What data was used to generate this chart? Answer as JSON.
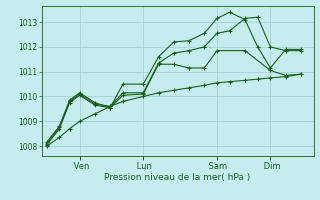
{
  "xlabel": "Pression niveau de la mer( hPa )",
  "bg_color": "#c5ecee",
  "grid_color": "#9ecdd4",
  "line_color": "#1a5e1a",
  "ylim": [
    1007.6,
    1013.65
  ],
  "yticks": [
    1008,
    1009,
    1010,
    1011,
    1012,
    1013
  ],
  "day_labels": [
    " Ven",
    " Lun",
    " Sam",
    " Dim"
  ],
  "day_positions": [
    0.13,
    0.38,
    0.67,
    0.88
  ],
  "lines": [
    {
      "x": [
        0.0,
        0.05,
        0.09,
        0.13,
        0.19,
        0.25,
        0.3,
        0.38,
        0.44,
        0.5,
        0.56,
        0.62,
        0.67,
        0.72,
        0.78,
        0.83,
        0.88,
        0.94,
        1.0
      ],
      "y": [
        1008.0,
        1008.35,
        1008.7,
        1009.0,
        1009.3,
        1009.6,
        1009.8,
        1010.0,
        1010.15,
        1010.25,
        1010.35,
        1010.45,
        1010.55,
        1010.6,
        1010.65,
        1010.7,
        1010.75,
        1010.8,
        1010.9
      ]
    },
    {
      "x": [
        0.0,
        0.05,
        0.09,
        0.13,
        0.19,
        0.25,
        0.3,
        0.38,
        0.44,
        0.5,
        0.56,
        0.62,
        0.67,
        0.78,
        0.88,
        0.94,
        1.0
      ],
      "y": [
        1008.05,
        1008.7,
        1009.75,
        1010.05,
        1009.65,
        1009.55,
        1010.05,
        1010.1,
        1011.3,
        1011.3,
        1011.15,
        1011.15,
        1011.85,
        1011.85,
        1011.05,
        1010.85,
        1010.9
      ]
    },
    {
      "x": [
        0.0,
        0.05,
        0.09,
        0.13,
        0.19,
        0.25,
        0.3,
        0.38,
        0.44,
        0.5,
        0.56,
        0.62,
        0.67,
        0.72,
        0.78,
        0.83,
        0.88,
        0.94,
        1.0
      ],
      "y": [
        1008.1,
        1008.75,
        1009.8,
        1010.1,
        1009.7,
        1009.6,
        1010.15,
        1010.15,
        1011.35,
        1011.75,
        1011.85,
        1012.0,
        1012.55,
        1012.65,
        1013.15,
        1013.2,
        1012.0,
        1011.85,
        1011.85
      ]
    },
    {
      "x": [
        0.0,
        0.05,
        0.09,
        0.13,
        0.19,
        0.25,
        0.3,
        0.38,
        0.44,
        0.5,
        0.56,
        0.62,
        0.67,
        0.72,
        0.78,
        0.83,
        0.88,
        0.94,
        1.0
      ],
      "y": [
        1008.15,
        1008.8,
        1009.85,
        1010.15,
        1009.75,
        1009.55,
        1010.5,
        1010.5,
        1011.6,
        1012.2,
        1012.25,
        1012.55,
        1013.15,
        1013.4,
        1013.1,
        1012.0,
        1011.15,
        1011.9,
        1011.9
      ]
    }
  ]
}
